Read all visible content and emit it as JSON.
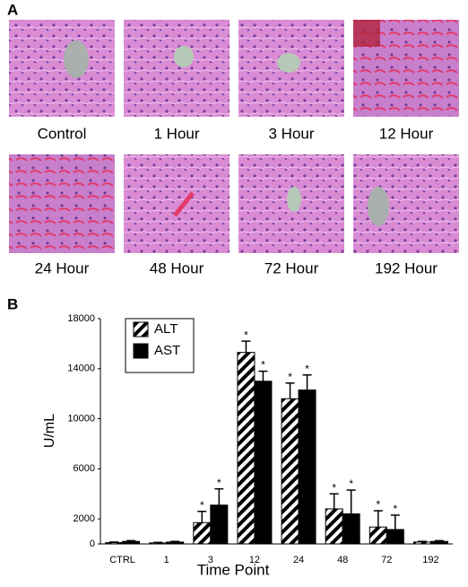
{
  "panel_a": {
    "label": "A",
    "captions": [
      "Control",
      "1 Hour",
      "3 Hour",
      "12 Hour",
      "24 Hour",
      "48 Hour",
      "72 Hour",
      "192 Hour"
    ]
  },
  "chart_data": {
    "type": "bar",
    "panel_label": "B",
    "x_label": "Time Point",
    "y_label": "U/mL",
    "categories": [
      "CTRL",
      "1",
      "3",
      "12",
      "24",
      "48",
      "72",
      "192"
    ],
    "series": [
      {
        "name": "ALT",
        "color": "#000000",
        "pattern": "hatch",
        "values": [
          100,
          80,
          1700,
          15300,
          11600,
          2800,
          1350,
          150
        ],
        "errors": [
          50,
          40,
          900,
          900,
          1250,
          1200,
          1300,
          50
        ],
        "stars": [
          null,
          null,
          "*",
          "*",
          "*",
          "*",
          "*",
          null
        ]
      },
      {
        "name": "AST",
        "color": "#000000",
        "pattern": "solid",
        "values": [
          200,
          150,
          3100,
          13000,
          12300,
          2400,
          1150,
          200
        ],
        "errors": [
          60,
          50,
          1300,
          800,
          1200,
          1900,
          1150,
          60
        ],
        "stars": [
          null,
          null,
          "*",
          "*",
          "*",
          "*",
          "*",
          null
        ]
      }
    ],
    "ylim": [
      0,
      18000
    ],
    "yticks": [
      0,
      2000,
      6000,
      10000,
      14000,
      18000
    ],
    "legend": "upper-left",
    "grid": false
  }
}
